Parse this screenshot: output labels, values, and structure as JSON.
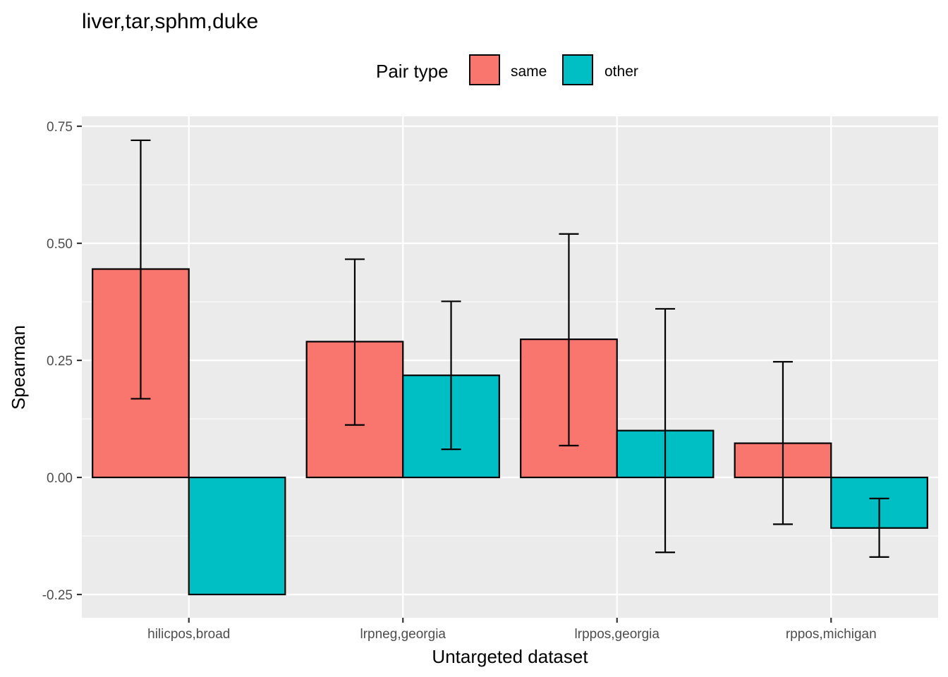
{
  "chart_data": {
    "type": "bar",
    "title": "liver,tar,sphm,duke",
    "xlabel": "Untargeted dataset",
    "ylabel": "Spearman",
    "ylim": [
      -0.3,
      0.77
    ],
    "yticks": [
      -0.25,
      0.0,
      0.25,
      0.5,
      0.75
    ],
    "ytick_labels": [
      "-0.25",
      "0.00",
      "0.25",
      "0.50",
      "0.75"
    ],
    "categories": [
      "hilicpos,broad",
      "lrpneg,georgia",
      "lrppos,georgia",
      "rppos,michigan"
    ],
    "legend": {
      "title": "Pair type",
      "position": "top"
    },
    "grid": true,
    "series": [
      {
        "name": "same",
        "color": "#F8766D",
        "values": [
          0.445,
          0.29,
          0.295,
          0.073
        ],
        "err_low": [
          0.168,
          0.112,
          0.068,
          -0.1
        ],
        "err_high": [
          0.72,
          0.466,
          0.52,
          0.247
        ]
      },
      {
        "name": "other",
        "color": "#00BFC4",
        "values": [
          -0.25,
          0.218,
          0.1,
          -0.108
        ],
        "err_low": [
          null,
          0.06,
          -0.16,
          -0.17
        ],
        "err_high": [
          null,
          0.376,
          0.36,
          -0.045
        ]
      }
    ]
  }
}
